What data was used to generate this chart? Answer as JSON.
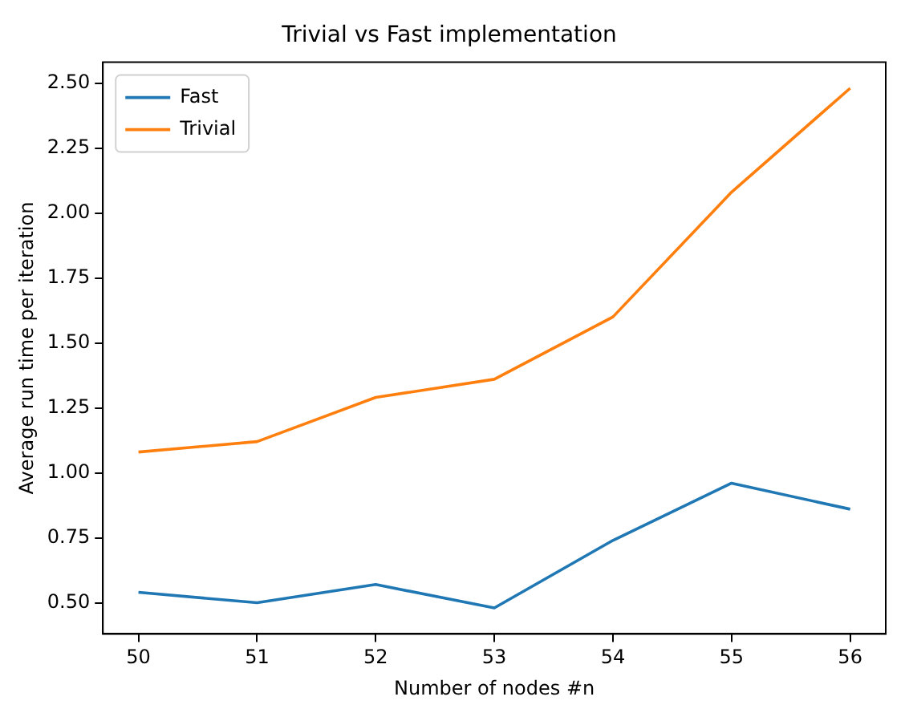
{
  "chart_data": {
    "type": "line",
    "title": "Trivial vs Fast implementation",
    "xlabel": "Number of nodes #n",
    "ylabel": "Average run time per iteration",
    "x": [
      50,
      51,
      52,
      53,
      54,
      55,
      56
    ],
    "series": [
      {
        "name": "Fast",
        "color": "#1f77b4",
        "values": [
          0.54,
          0.5,
          0.57,
          0.48,
          0.74,
          0.96,
          0.86
        ]
      },
      {
        "name": "Trivial",
        "color": "#ff7f0e",
        "values": [
          1.08,
          1.12,
          1.29,
          1.36,
          1.6,
          2.08,
          2.48
        ]
      }
    ],
    "xlim": [
      49.7,
      56.3
    ],
    "xticks": [
      50,
      51,
      52,
      53,
      54,
      55,
      56
    ],
    "ylim": [
      0.38,
      2.58
    ],
    "yticks": [
      {
        "value": 0.5,
        "label": "0.50"
      },
      {
        "value": 0.75,
        "label": "0.75"
      },
      {
        "value": 1.0,
        "label": "1.00"
      },
      {
        "value": 1.25,
        "label": "1.25"
      },
      {
        "value": 1.5,
        "label": "1.50"
      },
      {
        "value": 1.75,
        "label": "1.75"
      },
      {
        "value": 2.0,
        "label": "2.00"
      },
      {
        "value": 2.25,
        "label": "2.25"
      },
      {
        "value": 2.5,
        "label": "2.50"
      }
    ],
    "legend": "top left",
    "grid": false,
    "marker": "none",
    "line_style": "solid"
  }
}
